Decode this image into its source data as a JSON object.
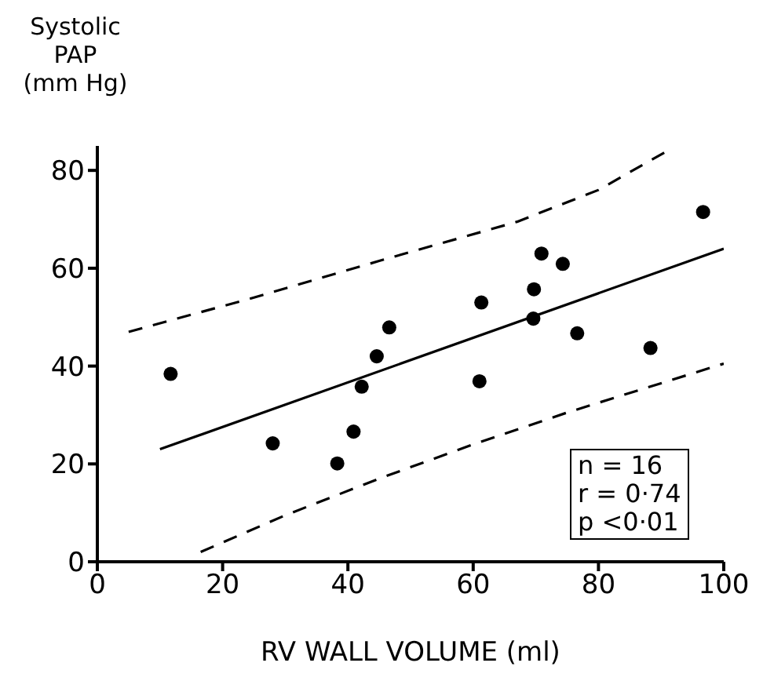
{
  "chart_data": {
    "type": "scatter",
    "ylabel": "Systolic\nPAP\n(mm Hg)",
    "xlabel": "RV  WALL  VOLUME (ml)",
    "xlim": [
      0,
      100
    ],
    "xticks": [
      0,
      20,
      40,
      60,
      80,
      100
    ],
    "ylim": [
      0,
      85
    ],
    "yticks": [
      0,
      20,
      40,
      60,
      80
    ],
    "grid": false,
    "legend": false,
    "annotations": [
      "n = 16",
      "r = 0·74",
      "p <0·01"
    ],
    "series": [
      {
        "color": "#000000",
        "marker": "circle",
        "x": [
          11.7,
          28.0,
          38.3,
          40.9,
          42.2,
          44.6,
          46.6,
          61.3,
          61.0,
          70.9,
          74.3,
          69.7,
          69.6,
          76.6,
          88.3,
          96.7
        ],
        "values": [
          38.4,
          24.2,
          20.1,
          26.6,
          35.8,
          42.0,
          47.9,
          53.0,
          36.9,
          63.0,
          60.9,
          55.7,
          49.7,
          46.7,
          43.7,
          71.5
        ]
      },
      {
        "type": "line",
        "color": "#000000",
        "marker": "none",
        "line_style": "solid",
        "x": [
          10,
          100
        ],
        "values": [
          23,
          64
        ]
      },
      {
        "type": "line",
        "color": "#000000",
        "marker": "none",
        "line_style": "dashed",
        "x": [
          5,
          25,
          45,
          67,
          80,
          91
        ],
        "values": [
          47,
          54,
          61.5,
          69.5,
          76,
          84
        ]
      },
      {
        "type": "line",
        "color": "#000000",
        "marker": "none",
        "line_style": "dashed",
        "x": [
          16.5,
          30,
          45,
          60,
          75,
          100
        ],
        "values": [
          2,
          9.5,
          17,
          24,
          30.5,
          40.5
        ]
      }
    ]
  }
}
